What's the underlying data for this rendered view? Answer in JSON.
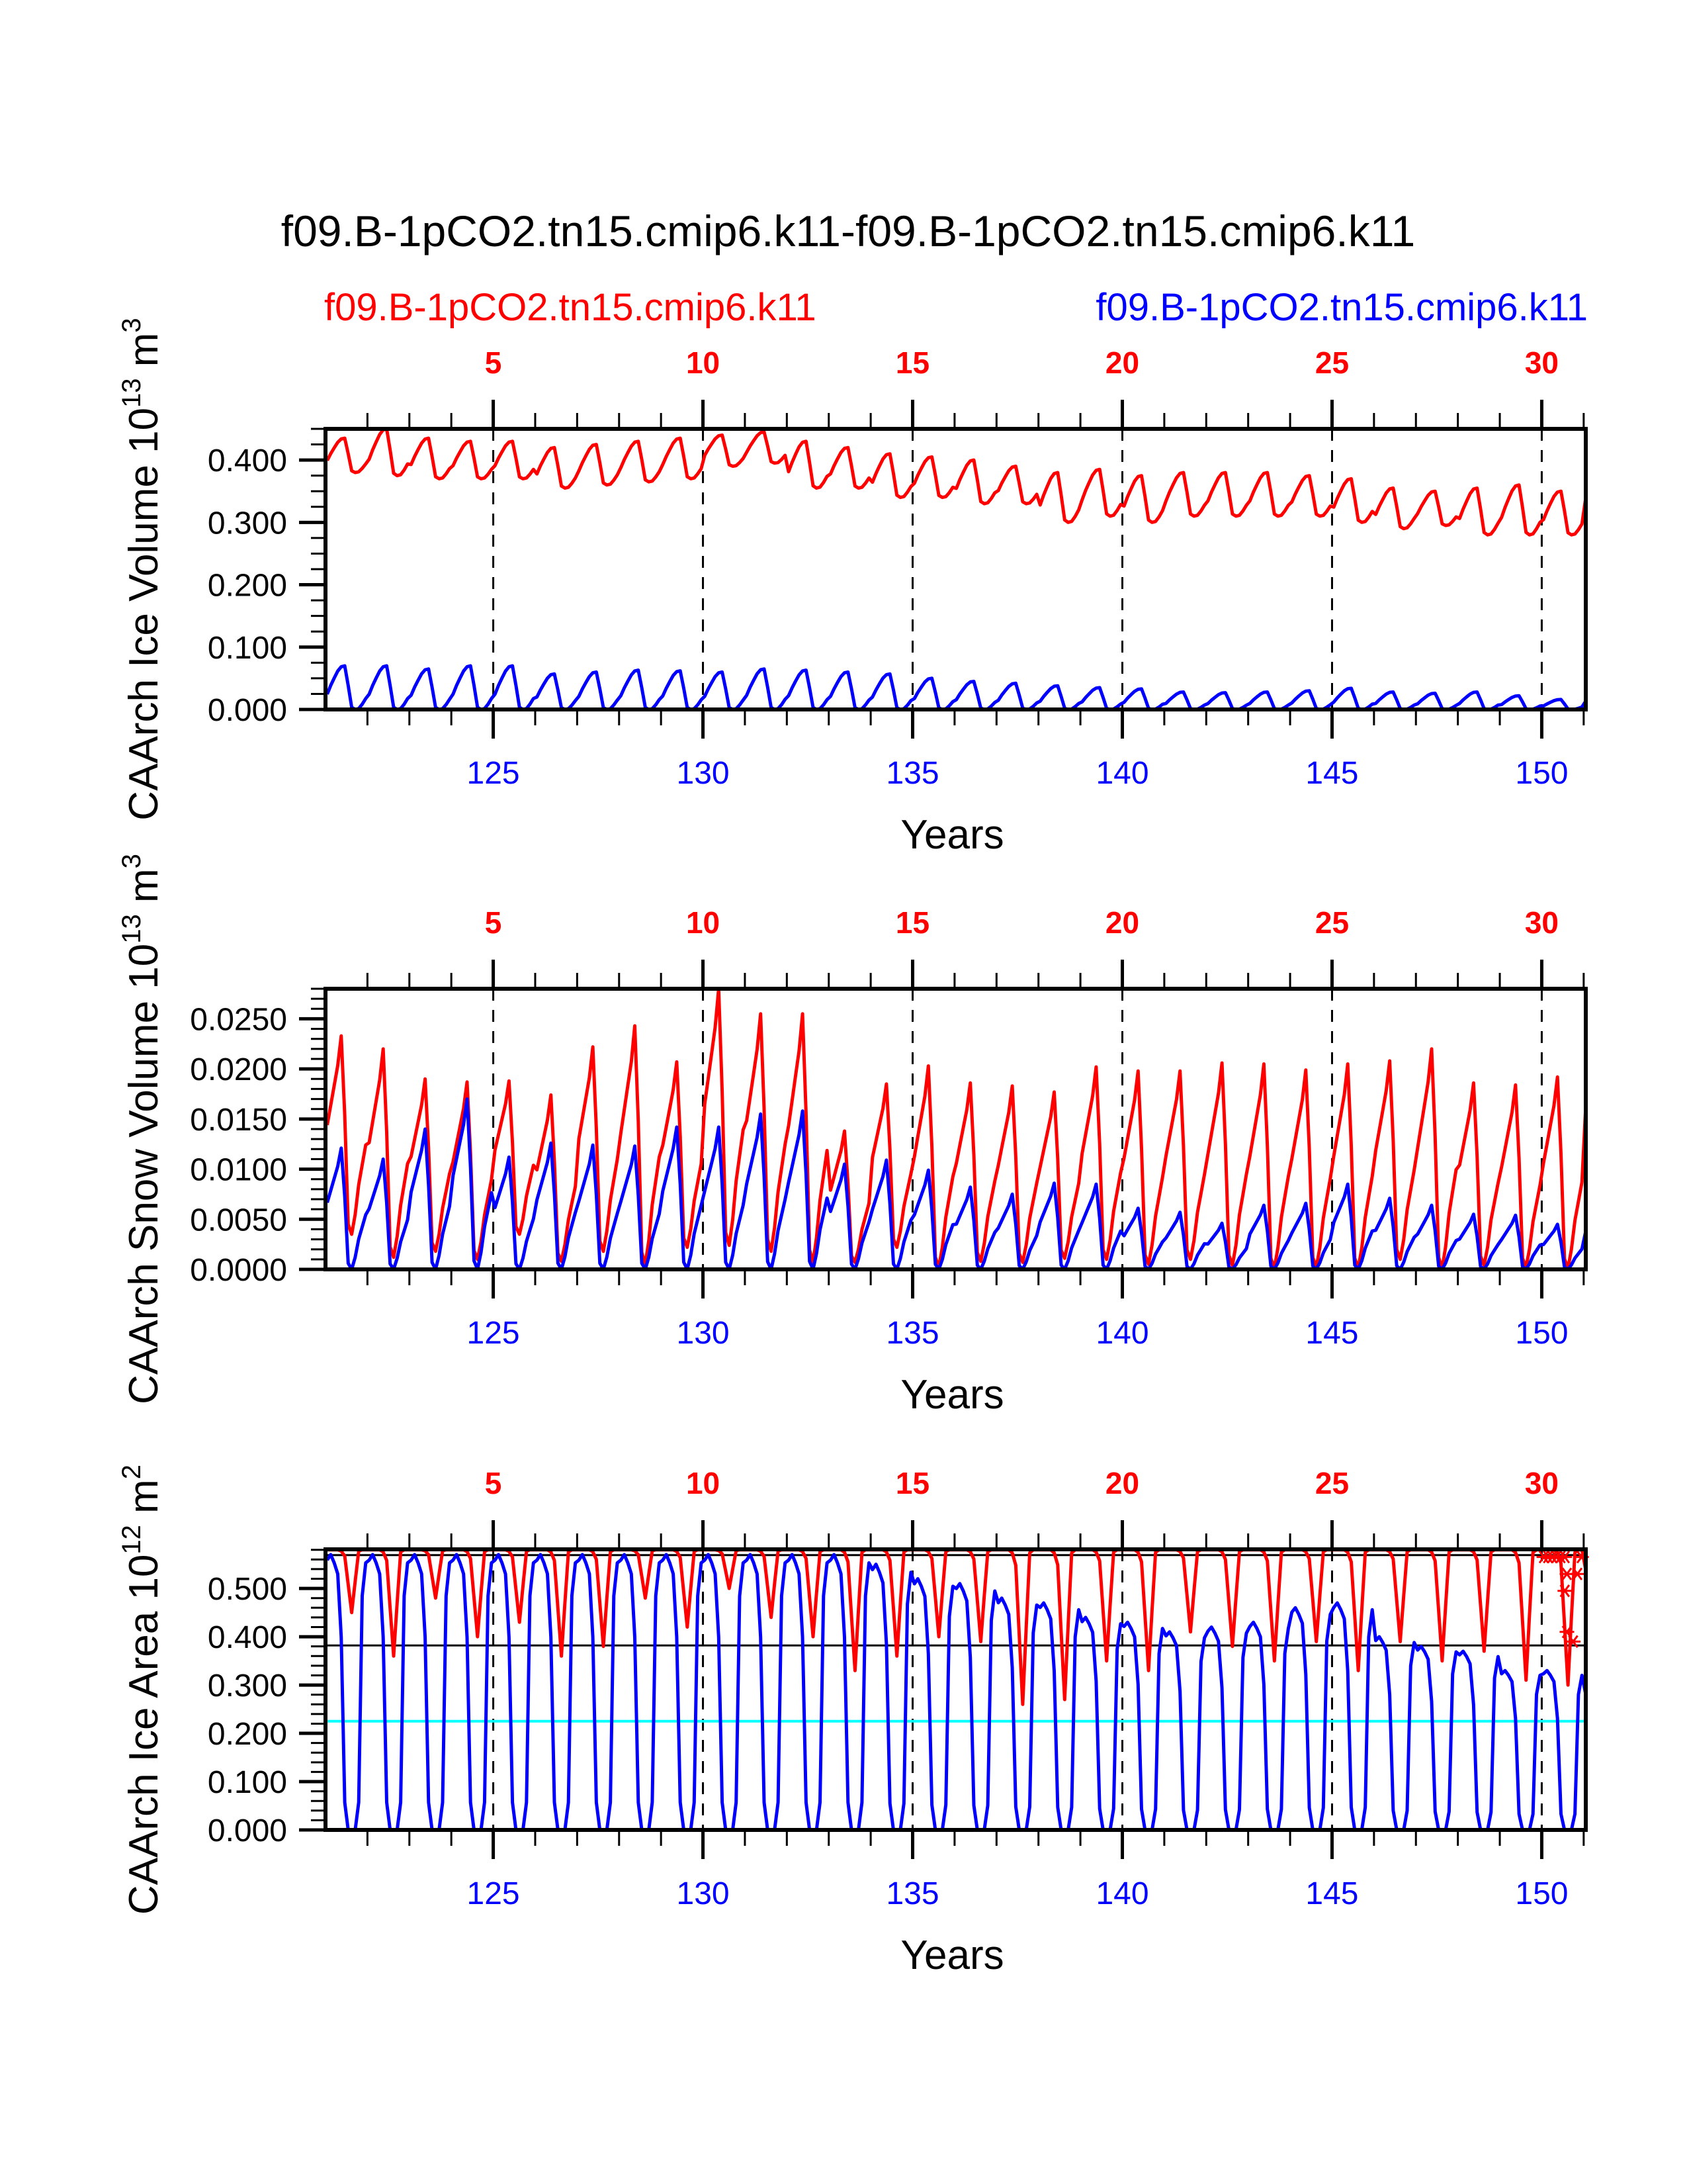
{
  "chart_data": {
    "type": "line",
    "title": "f09.B-1pCO2.tn15.cmip6.k11-f09.B-1pCO2.tn15.cmip6.k11",
    "legend": [
      {
        "name": "f09.B-1pCO2.tn15.cmip6.k11",
        "color": "#ff0000",
        "position": "top-left"
      },
      {
        "name": "f09.B-1pCO2.tn15.cmip6.k11",
        "color": "#0000ff",
        "position": "top-right"
      }
    ],
    "x_range": [
      121.0,
      151.05
    ],
    "bottom_ticks": [
      125,
      130,
      135,
      140,
      145,
      150
    ],
    "bottom_tick_labels": [
      "125",
      "130",
      "135",
      "140",
      "145",
      "150"
    ],
    "top_ticks": [
      125,
      130,
      135,
      140,
      145,
      150
    ],
    "top_tick_labels": [
      "5",
      "10",
      "15",
      "20",
      "25",
      "30"
    ],
    "xlabel": "Years",
    "years": [
      121,
      122,
      123,
      124,
      125,
      126,
      127,
      128,
      129,
      130,
      131,
      132,
      133,
      134,
      135,
      136,
      137,
      138,
      139,
      140,
      141,
      142,
      143,
      144,
      145,
      146,
      147,
      148,
      149,
      150
    ],
    "panels": [
      {
        "ylabel": "CAArch Ice Volume 10",
        "ylabel_exp": "13",
        "ylabel_unit": " m",
        "ylabel_unit_exp": "3",
        "ylim": [
          0.0,
          0.45
        ],
        "yticks": [
          0.0,
          0.1,
          0.2,
          0.3,
          0.4
        ],
        "ytick_labels": [
          "0.000",
          "0.100",
          "0.200",
          "0.300",
          "0.400"
        ],
        "minor_step": 0.025,
        "hlines": [],
        "series": [
          {
            "name": "red",
            "color": "#ff0000",
            "annual_max": [
              0.435,
              0.45,
              0.435,
              0.43,
              0.43,
              0.42,
              0.425,
              0.43,
              0.435,
              0.44,
              0.445,
              0.43,
              0.42,
              0.41,
              0.405,
              0.4,
              0.39,
              0.38,
              0.385,
              0.375,
              0.38,
              0.38,
              0.38,
              0.375,
              0.37,
              0.355,
              0.35,
              0.355,
              0.36,
              0.35
            ],
            "annual_min": [
              0.38,
              0.375,
              0.37,
              0.37,
              0.37,
              0.355,
              0.36,
              0.365,
              0.37,
              0.39,
              0.395,
              0.355,
              0.355,
              0.34,
              0.34,
              0.33,
              0.33,
              0.3,
              0.31,
              0.3,
              0.31,
              0.31,
              0.31,
              0.31,
              0.3,
              0.29,
              0.295,
              0.28,
              0.28,
              0.28
            ],
            "start_value": 0.4
          },
          {
            "name": "blue",
            "color": "#0000ff",
            "annual_max": [
              0.07,
              0.07,
              0.065,
              0.07,
              0.07,
              0.057,
              0.06,
              0.063,
              0.062,
              0.06,
              0.065,
              0.063,
              0.06,
              0.057,
              0.05,
              0.045,
              0.042,
              0.038,
              0.035,
              0.033,
              0.028,
              0.027,
              0.028,
              0.03,
              0.034,
              0.028,
              0.026,
              0.028,
              0.022,
              0.016
            ],
            "annual_min": [
              0,
              0,
              0,
              0,
              0,
              0,
              0,
              0,
              0,
              0,
              0,
              0,
              0,
              0,
              0,
              0,
              0,
              0,
              0,
              0,
              0,
              0,
              0,
              0,
              0,
              0,
              0,
              0,
              0,
              0
            ],
            "start_value": 0.035
          }
        ],
        "vlines_dashed": [
          125,
          130,
          135,
          140,
          145,
          150
        ]
      },
      {
        "ylabel": "CAArch Snow Volume 10",
        "ylabel_exp": "13",
        "ylabel_unit": " m",
        "ylabel_unit_exp": "3",
        "ylim": [
          0.0,
          0.028
        ],
        "yticks": [
          0.0,
          0.005,
          0.01,
          0.015,
          0.02,
          0.025
        ],
        "ytick_labels": [
          "0.0000",
          "0.0050",
          "0.0100",
          "0.0150",
          "0.0200",
          "0.0250"
        ],
        "minor_step": 0.001,
        "hlines": [],
        "series": [
          {
            "name": "red",
            "color": "#ff0000",
            "annual_max": [
              0.0233,
              0.022,
              0.019,
              0.0187,
              0.0188,
              0.0174,
              0.0222,
              0.0243,
              0.0207,
              0.028,
              0.0255,
              0.0255,
              0.0138,
              0.0185,
              0.0203,
              0.0186,
              0.0183,
              0.0177,
              0.0202,
              0.0198,
              0.0198,
              0.0206,
              0.0205,
              0.0199,
              0.0205,
              0.0208,
              0.022,
              0.0186,
              0.0184,
              0.0192
            ],
            "annual_min": [
              0.0035,
              0.0012,
              0.0018,
              0.001,
              0.0035,
              0.0008,
              0.0018,
              0.0005,
              0.0022,
              0.0024,
              0.0018,
              0.0007,
              0.0007,
              0.0022,
              0.0002,
              0.0008,
              0.0007,
              0.0011,
              0.001,
              0.0005,
              0.001,
              0.0004,
              0.0001,
              0.0002,
              0.0001,
              0.001,
              0.0001,
              0.0004,
              0.0002,
              0.0001
            ],
            "start_value": 0.017
          },
          {
            "name": "blue",
            "color": "#0000ff",
            "annual_max": [
              0.0121,
              0.011,
              0.014,
              0.017,
              0.0112,
              0.0126,
              0.0124,
              0.0123,
              0.0142,
              0.0142,
              0.0155,
              0.0158,
              0.0105,
              0.0109,
              0.0099,
              0.0082,
              0.0075,
              0.0086,
              0.0085,
              0.0061,
              0.0057,
              0.0046,
              0.0064,
              0.0066,
              0.0085,
              0.0071,
              0.0064,
              0.0055,
              0.0054,
              0.0045
            ],
            "annual_min": [
              0,
              0,
              0,
              0,
              0,
              0,
              0,
              0,
              0,
              0,
              0,
              0,
              0,
              0,
              0,
              0,
              0,
              0,
              0,
              0,
              0,
              0,
              0,
              0,
              0,
              0,
              0,
              0,
              0,
              0
            ],
            "start_value": 0.006
          }
        ],
        "vlines_dashed": [
          125,
          130,
          135,
          140,
          145,
          150
        ]
      },
      {
        "ylabel": "CAArch Ice Area 10",
        "ylabel_exp": "12",
        "ylabel_unit": " m",
        "ylabel_unit_exp": "2",
        "ylim": [
          0.0,
          0.581
        ],
        "yticks": [
          0.0,
          0.1,
          0.2,
          0.3,
          0.4,
          0.5
        ],
        "ytick_labels": [
          "0.000",
          "0.100",
          "0.200",
          "0.300",
          "0.400",
          "0.500"
        ],
        "minor_step": 0.02,
        "hlines": [
          {
            "value": 0.569,
            "color": "#000000"
          },
          {
            "value": 0.382,
            "color": "#000000"
          },
          {
            "value": 0.225,
            "color": "#00ffff"
          }
        ],
        "series": [
          {
            "name": "red",
            "color": "#ff0000",
            "annual_max": [
              0.58,
              0.58,
              0.58,
              0.58,
              0.58,
              0.58,
              0.58,
              0.58,
              0.58,
              0.58,
              0.58,
              0.58,
              0.58,
              0.58,
              0.58,
              0.58,
              0.58,
              0.58,
              0.58,
              0.58,
              0.58,
              0.58,
              0.58,
              0.58,
              0.58,
              0.58,
              0.58,
              0.58,
              0.58,
              0.58
            ],
            "annual_min": [
              0.45,
              0.36,
              0.48,
              0.4,
              0.43,
              0.36,
              0.38,
              0.48,
              0.42,
              0.5,
              0.44,
              0.4,
              0.33,
              0.36,
              0.4,
              0.39,
              0.26,
              0.27,
              0.35,
              0.33,
              0.41,
              0.38,
              0.35,
              0.39,
              0.33,
              0.39,
              0.35,
              0.37,
              0.31,
              0.3
            ],
            "start_value": 0.58
          },
          {
            "name": "blue",
            "color": "#0000ff",
            "annual_max": [
              0.57,
              0.57,
              0.57,
              0.57,
              0.57,
              0.57,
              0.57,
              0.57,
              0.57,
              0.57,
              0.57,
              0.57,
              0.57,
              0.55,
              0.52,
              0.51,
              0.48,
              0.47,
              0.44,
              0.43,
              0.41,
              0.42,
              0.43,
              0.46,
              0.47,
              0.4,
              0.38,
              0.37,
              0.33,
              0.33
            ],
            "annual_min": [
              0,
              0,
              0,
              0,
              0,
              0,
              0,
              0,
              0,
              0,
              0,
              0,
              0,
              0,
              0,
              0,
              0,
              0,
              0,
              0,
              0,
              0,
              0,
              0,
              0,
              0,
              0,
              0,
              0,
              0
            ],
            "start_value": 0.56
          }
        ],
        "markers": {
          "symbol": "asterisk",
          "color": "#ff0000",
          "points": [
            [
              150.05,
              0.565
            ],
            [
              150.15,
              0.565
            ],
            [
              150.25,
              0.565
            ],
            [
              150.35,
              0.565
            ],
            [
              150.45,
              0.565
            ],
            [
              150.55,
              0.565
            ],
            [
              150.6,
              0.53
            ],
            [
              150.55,
              0.495
            ],
            [
              150.6,
              0.41
            ],
            [
              150.75,
              0.39
            ],
            [
              150.85,
              0.53
            ],
            [
              150.95,
              0.565
            ]
          ]
        },
        "vlines_dashed": [
          125,
          130,
          135,
          140,
          145,
          150
        ]
      }
    ]
  }
}
